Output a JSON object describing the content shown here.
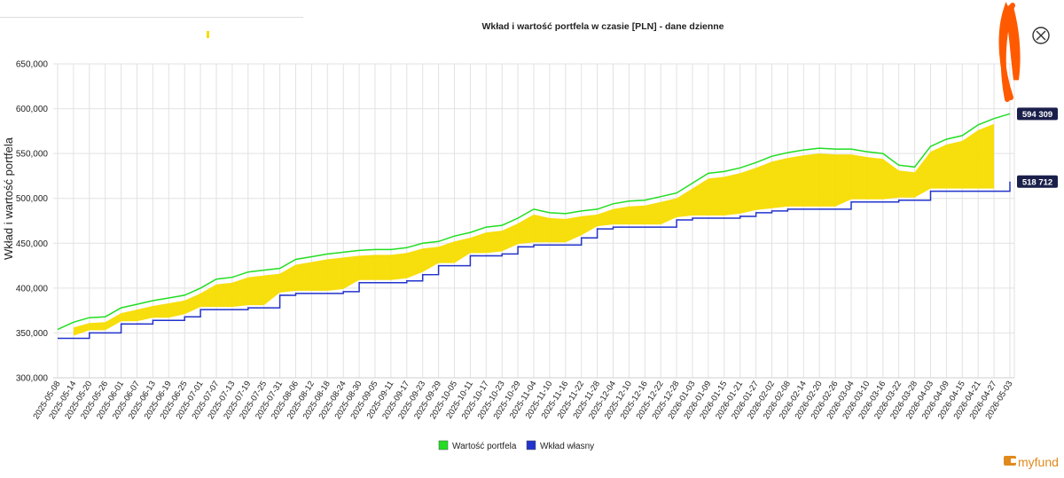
{
  "chart_data": {
    "type": "line",
    "title": "Wkład i wartość portfela w czasie [PLN] - dane dzienne",
    "ylabel": "Wkład i wartość portfela",
    "xlabel": "",
    "ylim": [
      300000,
      650000
    ],
    "yticks": [
      "300,000",
      "350,000",
      "400,000",
      "450,000",
      "500,000",
      "550,000",
      "600,000",
      "650,000"
    ],
    "x": [
      "2025-05-08",
      "2025-05-14",
      "2025-05-20",
      "2025-05-26",
      "2025-06-01",
      "2025-06-07",
      "2025-06-13",
      "2025-06-19",
      "2025-06-25",
      "2025-07-01",
      "2025-07-07",
      "2025-07-13",
      "2025-07-19",
      "2025-07-25",
      "2025-07-31",
      "2025-08-06",
      "2025-08-12",
      "2025-08-18",
      "2025-08-24",
      "2025-08-30",
      "2025-09-05",
      "2025-09-11",
      "2025-09-17",
      "2025-09-23",
      "2025-09-29",
      "2025-10-05",
      "2025-10-11",
      "2025-10-17",
      "2025-10-23",
      "2025-10-29",
      "2025-11-04",
      "2025-11-10",
      "2025-11-16",
      "2025-11-22",
      "2025-11-28",
      "2025-12-04",
      "2025-12-10",
      "2025-12-16",
      "2025-12-22",
      "2025-12-28",
      "2026-01-03",
      "2026-01-09",
      "2026-01-15",
      "2026-01-21",
      "2026-01-27",
      "2026-02-02",
      "2026-02-08",
      "2026-02-14",
      "2026-02-20",
      "2026-02-26",
      "2026-03-04",
      "2026-03-10",
      "2026-03-16",
      "2026-03-22",
      "2026-03-28",
      "2026-04-03",
      "2026-04-09",
      "2026-04-15",
      "2026-04-21",
      "2026-04-27",
      "2026-05-03"
    ],
    "series": [
      {
        "name": "Wartość portfela",
        "color": "#22dd22",
        "values": [
          354000,
          362000,
          367000,
          368000,
          378000,
          382000,
          386000,
          389000,
          392000,
          400000,
          410000,
          412000,
          418000,
          420000,
          422000,
          432000,
          435000,
          438000,
          440000,
          442000,
          443000,
          443000,
          445000,
          450000,
          452000,
          458000,
          462000,
          468000,
          470000,
          478000,
          488000,
          484000,
          483000,
          486000,
          488000,
          494000,
          497000,
          498000,
          502000,
          506000,
          517000,
          528000,
          530000,
          534000,
          540000,
          547000,
          551000,
          554000,
          556000,
          555000,
          555000,
          552000,
          550000,
          537000,
          535000,
          558000,
          566000,
          570000,
          582000,
          589000,
          594309
        ],
        "end_label": "594 309"
      },
      {
        "name": "Wkład własny",
        "color": "#2233cc",
        "values": [
          344000,
          344000,
          350000,
          350000,
          360000,
          360000,
          364000,
          364000,
          368000,
          376000,
          376000,
          376000,
          378000,
          378000,
          392000,
          394000,
          394000,
          394000,
          396000,
          406000,
          406000,
          406000,
          408000,
          415000,
          425000,
          425000,
          436000,
          436000,
          438000,
          446000,
          448000,
          448000,
          448000,
          456000,
          466000,
          468000,
          468000,
          468000,
          468000,
          476000,
          478000,
          478000,
          478000,
          480000,
          484000,
          486000,
          488000,
          488000,
          488000,
          488000,
          496000,
          496000,
          496000,
          498000,
          498000,
          508000,
          508000,
          508000,
          508000,
          508000,
          518712
        ],
        "end_label": "518 712"
      }
    ],
    "legend": [
      "Wartość portfela",
      "Wkład własny"
    ],
    "legend_position": "bottom-center",
    "grid": true,
    "brand": "myfund"
  }
}
